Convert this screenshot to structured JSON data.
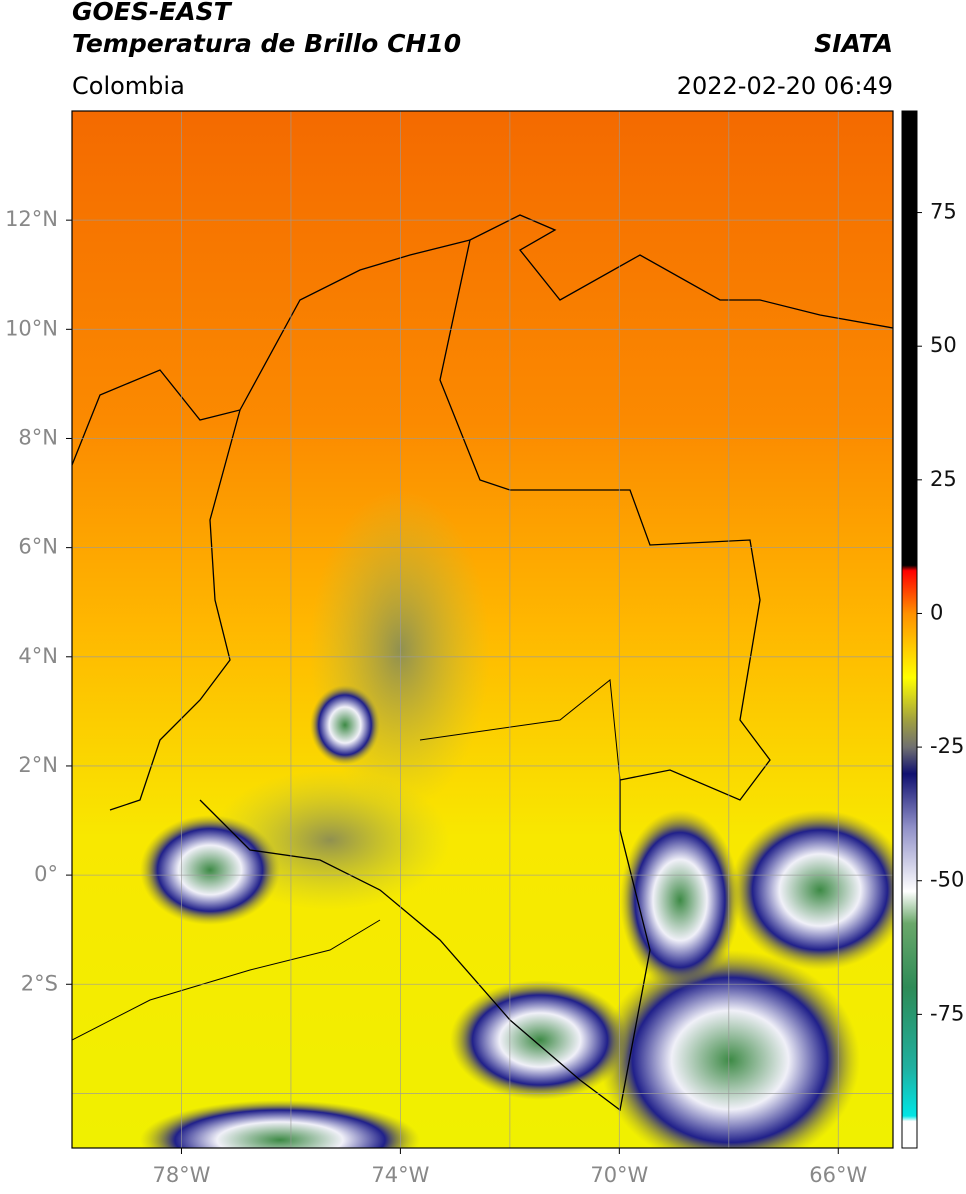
{
  "header": {
    "title": "GOES-EAST",
    "subtitle": "Temperatura de Brillo CH10",
    "source": "SIATA",
    "region": "Colombia",
    "timestamp": "2022-02-20 06:49"
  },
  "map": {
    "lonlim": [
      -80,
      -65
    ],
    "latlim": [
      -5,
      14
    ],
    "lon_ticks": [
      {
        "value": -78,
        "label": "78°W"
      },
      {
        "value": -74,
        "label": "74°W"
      },
      {
        "value": -70,
        "label": "70°W"
      },
      {
        "value": -66,
        "label": "66°W"
      }
    ],
    "lat_ticks": [
      {
        "value": 12,
        "label": "12°N"
      },
      {
        "value": 10,
        "label": "10°N"
      },
      {
        "value": 8,
        "label": "8°N"
      },
      {
        "value": 6,
        "label": "6°N"
      },
      {
        "value": 4,
        "label": "4°N"
      },
      {
        "value": 2,
        "label": "2°N"
      },
      {
        "value": 0,
        "label": "0°"
      },
      {
        "value": -2,
        "label": "2°S"
      }
    ],
    "lon_gridlines": [
      -78,
      -76,
      -74,
      -72,
      -70,
      -68,
      -66
    ],
    "lat_gridlines": [
      12,
      10,
      8,
      6,
      4,
      2,
      0,
      -2,
      -4
    ],
    "grid_color": "#9a9a9a"
  },
  "colorbar": {
    "lim": [
      -100,
      94
    ],
    "ticks": [
      75,
      50,
      25,
      0,
      -25,
      -50,
      -75
    ],
    "stops": [
      {
        "value": -100,
        "color": "#ffffff"
      },
      {
        "value": -95,
        "color": "#ffffff"
      },
      {
        "value": -94,
        "color": "#00e5e5"
      },
      {
        "value": -85,
        "color": "#20b0a0"
      },
      {
        "value": -70,
        "color": "#2e8b57"
      },
      {
        "value": -58,
        "color": "#6aa86a"
      },
      {
        "value": -52,
        "color": "#ffffff"
      },
      {
        "value": -40,
        "color": "#9090c8"
      },
      {
        "value": -30,
        "color": "#101070"
      },
      {
        "value": -25,
        "color": "#707070"
      },
      {
        "value": -20,
        "color": "#a0a040"
      },
      {
        "value": -12,
        "color": "#ffff00"
      },
      {
        "value": 0,
        "color": "#ff9000"
      },
      {
        "value": 8,
        "color": "#ff0000"
      },
      {
        "value": 9,
        "color": "#000000"
      },
      {
        "value": 94,
        "color": "#000000"
      }
    ]
  }
}
